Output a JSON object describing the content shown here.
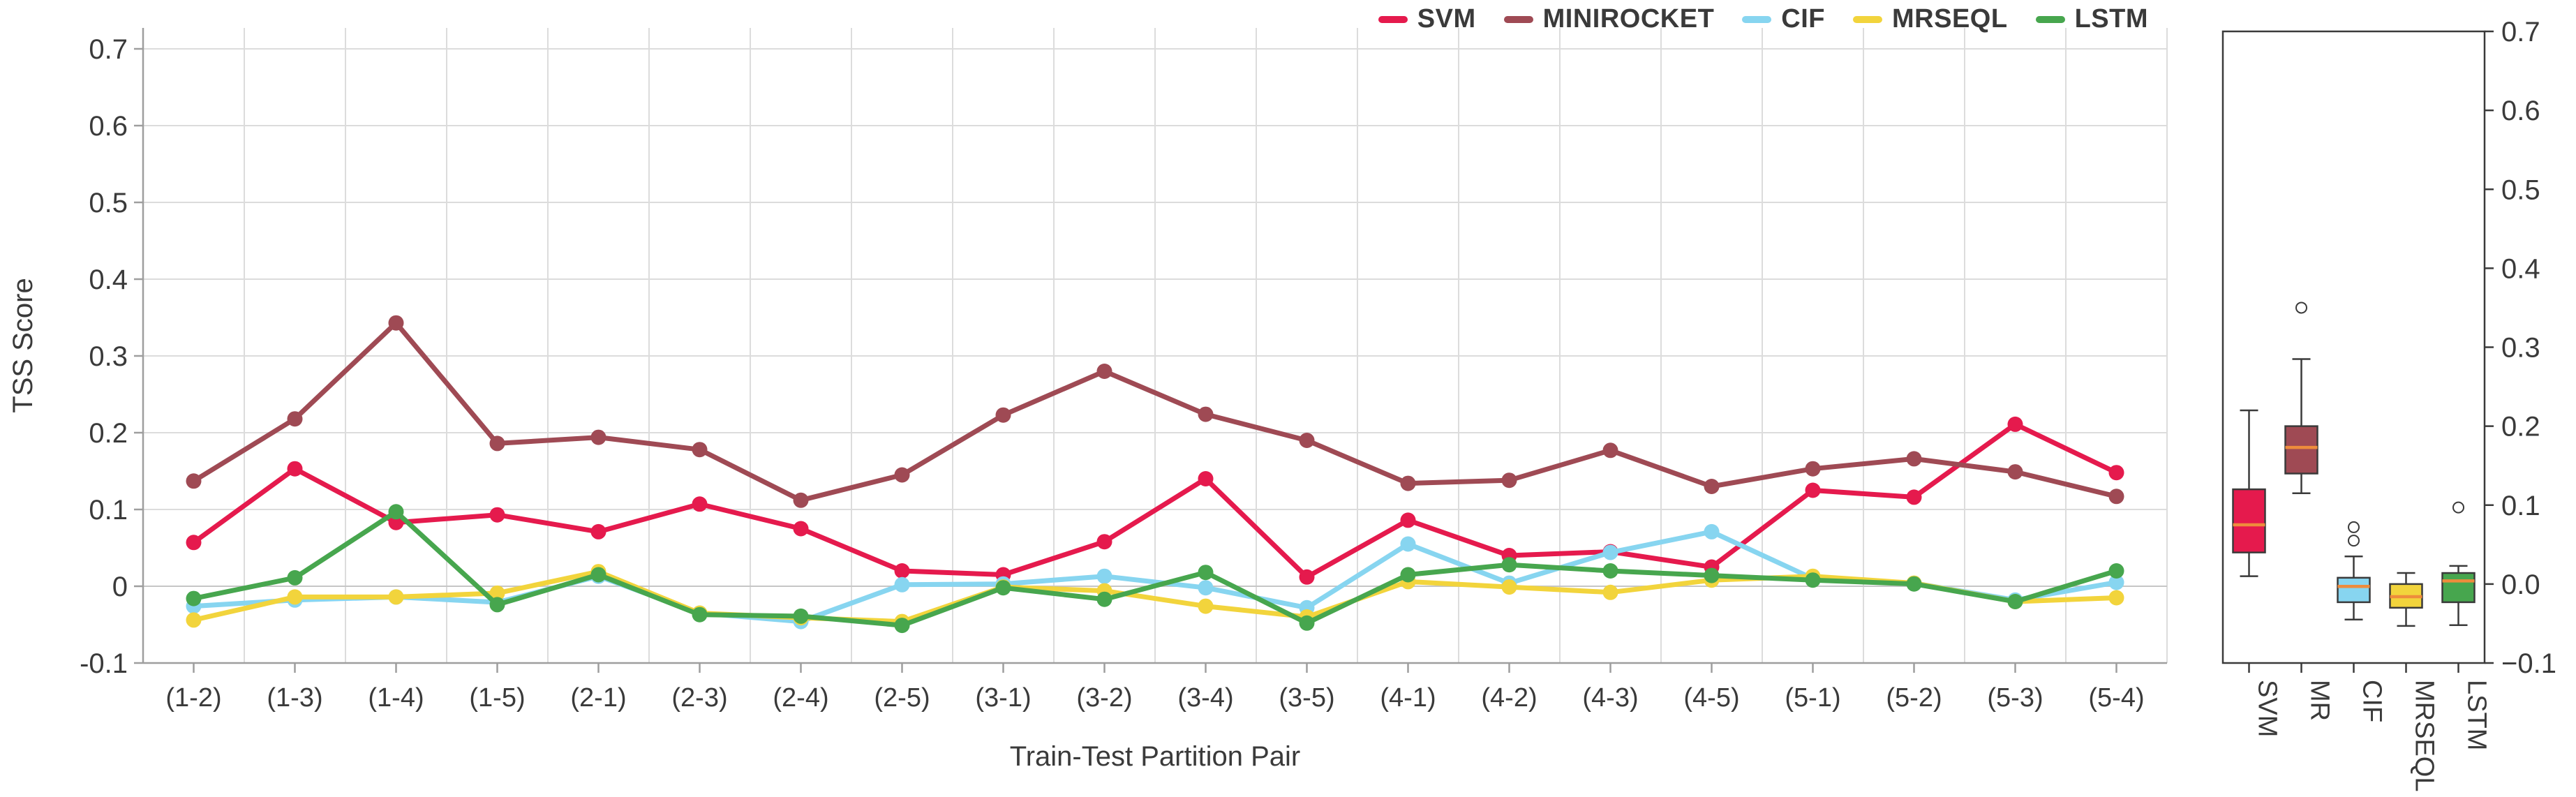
{
  "figure": {
    "xlabel": "Train-Test Partition Pair",
    "ylabel": "TSS Score",
    "background": "#ffffff",
    "text_color": "#3a3a3a",
    "grid_color": "#dcdcdc",
    "zero_grid_color": "#c6c6c6",
    "axis_color": "#9e9e9e",
    "box_border_color": "#3a3a3a"
  },
  "legend": {
    "items": [
      {
        "label": "SVM",
        "color": "#e51a4d"
      },
      {
        "label": "MINIROCKET",
        "color": "#9f4a54"
      },
      {
        "label": "CIF",
        "color": "#87d5f0"
      },
      {
        "label": "MRSEQL",
        "color": "#f2d43c"
      },
      {
        "label": "LSTM",
        "color": "#47a64e"
      }
    ]
  },
  "chart_data": [
    {
      "type": "line",
      "title": "",
      "xlabel": "Train-Test Partition Pair",
      "ylabel": "TSS Score",
      "ylim": [
        -0.1,
        0.7
      ],
      "ytick_step": 0.1,
      "ytick_labels_left": [
        "0.7",
        "0.6",
        "0.5",
        "0.4",
        "0.3",
        "0.2",
        "0.1",
        "0",
        "-0.1"
      ],
      "grid": true,
      "legend_position": "top-right",
      "marker": "circle",
      "categories": [
        "(1-2)",
        "(1-3)",
        "(1-4)",
        "(1-5)",
        "(2-1)",
        "(2-3)",
        "(2-4)",
        "(2-5)",
        "(3-1)",
        "(3-2)",
        "(3-4)",
        "(3-5)",
        "(4-1)",
        "(4-2)",
        "(4-3)",
        "(4-5)",
        "(5-1)",
        "(5-2)",
        "(5-3)",
        "(5-4)"
      ],
      "series": [
        {
          "name": "SVM",
          "color": "#e51a4d",
          "values": [
            0.057,
            0.153,
            0.083,
            0.093,
            0.071,
            0.107,
            0.075,
            0.02,
            0.015,
            0.058,
            0.14,
            0.012,
            0.086,
            0.04,
            0.045,
            0.025,
            0.125,
            0.116,
            0.211,
            0.148
          ]
        },
        {
          "name": "MINIROCKET",
          "color": "#9f4a54",
          "values": [
            0.137,
            0.218,
            0.343,
            0.186,
            0.194,
            0.178,
            0.112,
            0.145,
            0.223,
            0.28,
            0.224,
            0.19,
            0.134,
            0.138,
            0.177,
            0.13,
            0.153,
            0.166,
            0.149,
            0.117
          ]
        },
        {
          "name": "CIF",
          "color": "#87d5f0",
          "values": [
            -0.026,
            -0.018,
            -0.014,
            -0.021,
            0.013,
            -0.035,
            -0.046,
            0.002,
            0.003,
            0.013,
            -0.002,
            -0.028,
            0.055,
            0.004,
            0.044,
            0.071,
            0.01,
            0.004,
            -0.018,
            0.005
          ]
        },
        {
          "name": "MRSEQL",
          "color": "#f2d43c",
          "values": [
            -0.044,
            -0.014,
            -0.014,
            -0.009,
            0.019,
            -0.035,
            -0.041,
            -0.046,
            -0.001,
            -0.006,
            -0.026,
            -0.04,
            0.006,
            -0.001,
            -0.008,
            0.008,
            0.013,
            0.004,
            -0.02,
            -0.015
          ]
        },
        {
          "name": "LSTM",
          "color": "#47a64e",
          "values": [
            -0.016,
            0.011,
            0.097,
            -0.024,
            0.015,
            -0.037,
            -0.039,
            -0.051,
            -0.002,
            -0.017,
            0.018,
            -0.048,
            0.015,
            0.028,
            0.02,
            0.014,
            0.008,
            0.003,
            -0.02,
            0.02
          ]
        }
      ]
    },
    {
      "type": "box",
      "title": "",
      "ylim": [
        -0.1,
        0.7
      ],
      "ytick_labels_right": [
        "0.7",
        "0.6",
        "0.5",
        "0.4",
        "0.3",
        "0.2",
        "0.1",
        "0.0",
        "−0.1"
      ],
      "median_color": "#ee8c3c",
      "categories": [
        "SVM",
        "MR",
        "CIF",
        "MRSEQL",
        "LSTM"
      ],
      "boxes": [
        {
          "name": "SVM",
          "color": "#e51a4d",
          "whisker_low": 0.01,
          "q1": 0.04,
          "median": 0.075,
          "q3": 0.12,
          "whisker_high": 0.22,
          "outliers": []
        },
        {
          "name": "MR",
          "color": "#9f4a54",
          "whisker_low": 0.115,
          "q1": 0.14,
          "median": 0.173,
          "q3": 0.2,
          "whisker_high": 0.285,
          "outliers": [
            0.35
          ]
        },
        {
          "name": "CIF",
          "color": "#87d5f0",
          "whisker_low": -0.045,
          "q1": -0.023,
          "median": -0.003,
          "q3": 0.008,
          "whisker_high": 0.035,
          "outliers": [
            0.055,
            0.072
          ]
        },
        {
          "name": "MRSEQL",
          "color": "#f2d43c",
          "whisker_low": -0.053,
          "q1": -0.03,
          "median": -0.016,
          "q3": 0.0,
          "whisker_high": 0.014,
          "outliers": []
        },
        {
          "name": "LSTM",
          "color": "#47a64e",
          "whisker_low": -0.052,
          "q1": -0.023,
          "median": 0.004,
          "q3": 0.014,
          "whisker_high": 0.023,
          "outliers": [
            0.097
          ]
        }
      ]
    }
  ]
}
